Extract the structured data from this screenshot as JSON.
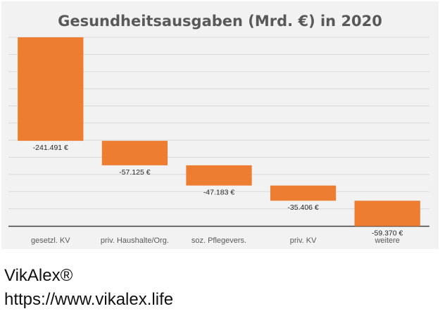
{
  "chart_data": {
    "type": "bar",
    "variant": "waterfall",
    "title": "Gesundheitsausgaben (Mrd. €) in 2020",
    "categories": [
      "gesetzl. KV",
      "priv. Haushalte/Org.",
      "soz. Pflegevers.",
      "priv. KV",
      "weitere"
    ],
    "values": [
      -241.491,
      -57.125,
      -47.183,
      -35.406,
      -59.37
    ],
    "data_labels": [
      "-241.491 €",
      "-57.125 €",
      "-47.183 €",
      "-35.406 €",
      "-59.370 €"
    ],
    "start_value": 0,
    "ylim": [
      -440,
      0
    ],
    "grid": true,
    "legend": "none",
    "bar_color": "#ed7d31",
    "grid_color": "#d9d9d9",
    "axis_color": "#404040",
    "background_color": "#f2f2f2"
  },
  "footer": {
    "brand": "VikAlex®",
    "url": "https://www.vikalex.life"
  }
}
